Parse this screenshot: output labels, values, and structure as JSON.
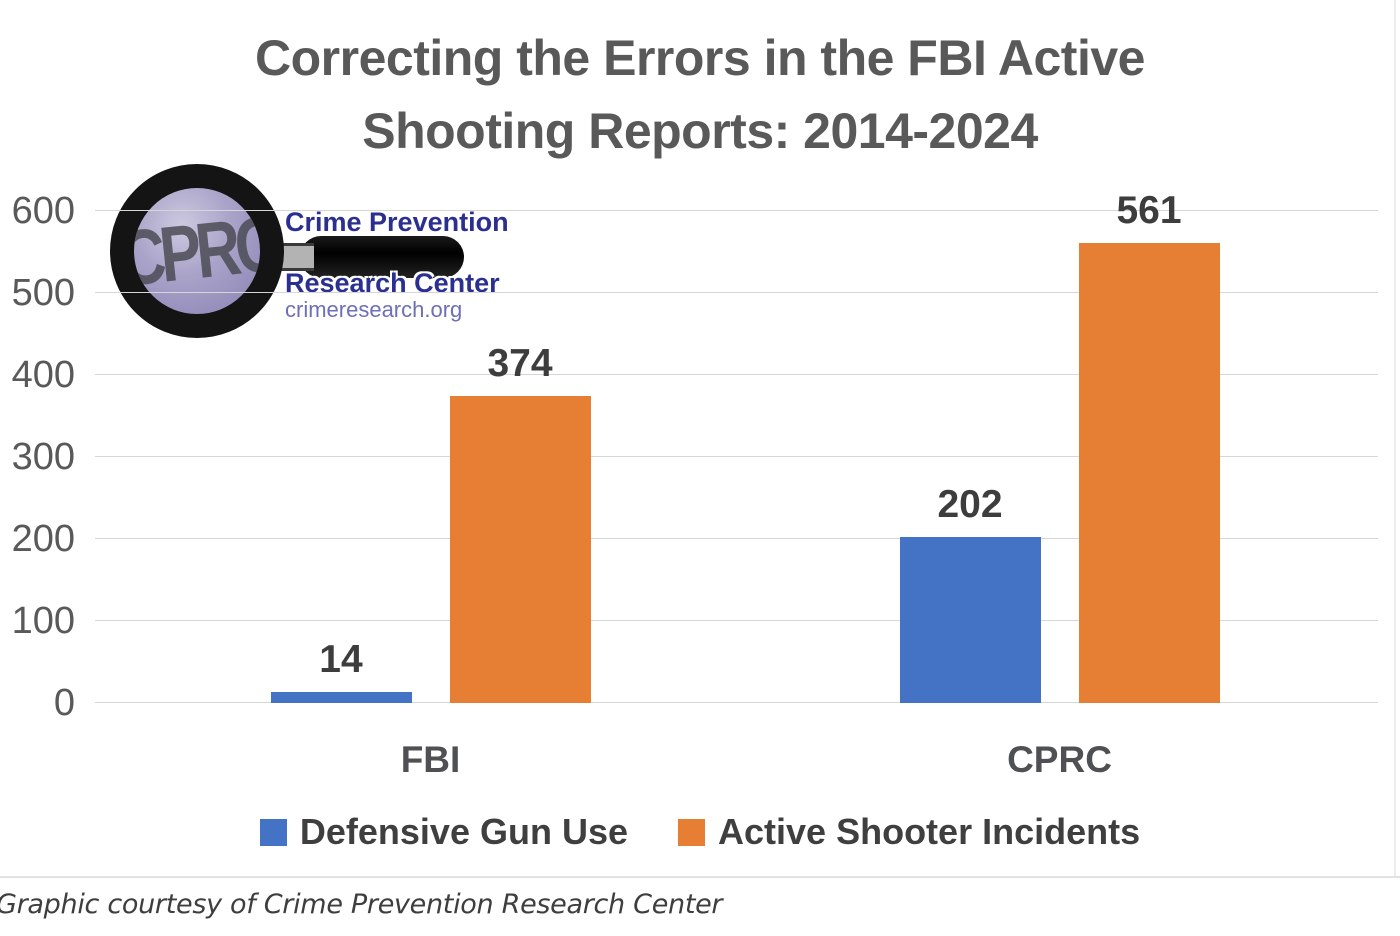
{
  "title": {
    "line1": "Correcting the Errors in the FBI Active",
    "line2": "Shooting Reports: 2014-2024"
  },
  "logo": {
    "monogram": "CPRC",
    "org_line1": "Crime Prevention",
    "org_line2": "Research Center",
    "website": "crimeresearch.org"
  },
  "chart_data": {
    "type": "bar",
    "title": "Correcting the Errors in the FBI Active Shooting Reports: 2014-2024",
    "categories": [
      "FBI",
      "CPRC"
    ],
    "series": [
      {
        "name": "Defensive Gun Use",
        "color": "#4472c4",
        "values": [
          14,
          202
        ]
      },
      {
        "name": "Active Shooter Incidents",
        "color": "#e67f33",
        "values": [
          374,
          561
        ]
      }
    ],
    "ylim": [
      0,
      650
    ],
    "yticks": [
      0,
      100,
      200,
      300,
      400,
      500,
      600
    ],
    "grid": true,
    "legend_position": "bottom",
    "data_labels": true
  },
  "footer": {
    "caption": "Graphic courtesy of Crime Prevention Research Center"
  },
  "colors": {
    "bar_blue": "#4472c4",
    "bar_orange": "#e67f33",
    "title_text": "#595959",
    "axis_text": "#595959",
    "label_text": "#3d3d3d",
    "gridline": "#d6d6d6",
    "logo_navy": "#2b2f90",
    "logo_purple": "#6e6fb4",
    "lens_fill": "#a9a2c8"
  }
}
